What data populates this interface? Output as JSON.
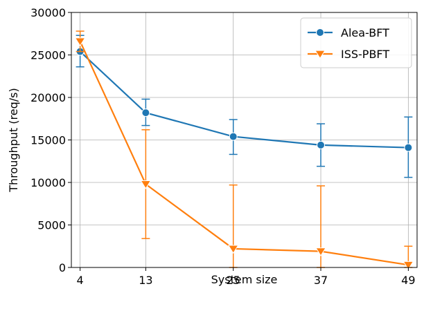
{
  "chart_data": {
    "type": "line",
    "xlabel": "System size",
    "ylabel": "Throughput (req/s)",
    "x": [
      4,
      13,
      25,
      37,
      49
    ],
    "xticks": [
      "4",
      "13",
      "25",
      "37",
      "49"
    ],
    "ylim": [
      0,
      30000
    ],
    "yticks": [
      0,
      5000,
      10000,
      15000,
      20000,
      25000,
      30000
    ],
    "grid": true,
    "legend_position": "top-right",
    "series": [
      {
        "name": "Alea-BFT",
        "color": "#1f77b4",
        "marker": "circle",
        "values": [
          25400,
          18200,
          15400,
          14400,
          14100
        ],
        "err_low": [
          23600,
          16700,
          13300,
          11900,
          10600
        ],
        "err_high": [
          27300,
          19800,
          17400,
          16900,
          17700
        ]
      },
      {
        "name": "ISS-PBFT",
        "color": "#ff7f0e",
        "marker": "triangle-down",
        "values": [
          26600,
          9800,
          2200,
          1900,
          300
        ],
        "err_low": [
          25400,
          3400,
          0,
          0,
          0
        ],
        "err_high": [
          27800,
          16200,
          9700,
          9600,
          2500
        ]
      }
    ]
  }
}
